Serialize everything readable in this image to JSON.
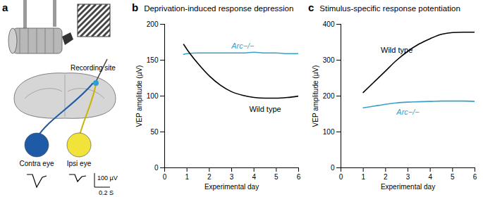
{
  "diagram": {
    "panel": "a",
    "recording_site": "Recording site",
    "eyes": [
      {
        "label": "Contra eye",
        "color": "#1f5aa6"
      },
      {
        "label": "Ipsi eye",
        "color": "#f2e33a"
      }
    ],
    "scale_bar": {
      "amplitude": "100 µV",
      "time": "0.2 S"
    }
  },
  "chart_data": [
    {
      "type": "line",
      "panel": "b",
      "title": "Deprivation-induced response depression",
      "x_label": "Experimental day",
      "y_label": "VEP amplitude (µV)",
      "x": [
        0.85,
        1,
        1.5,
        2,
        2.5,
        3,
        3.5,
        4,
        4.5,
        5,
        5.5,
        6
      ],
      "series": [
        {
          "name": "Arc−/−",
          "color": "#3a9fc8",
          "values": [
            158,
            159,
            160,
            160,
            160,
            160,
            160,
            161,
            160,
            160,
            159,
            159
          ]
        },
        {
          "name": "Wild type",
          "color": "#000000",
          "values": [
            172,
            165,
            145,
            128,
            115,
            106,
            101,
            98,
            97,
            97,
            98,
            100
          ]
        }
      ],
      "xlim": [
        0,
        6
      ],
      "xticks": [
        0,
        1,
        2,
        3,
        4,
        5,
        6
      ],
      "ylim": [
        0,
        200
      ],
      "yticks": [
        0,
        50,
        100,
        150,
        200
      ],
      "grid": false
    },
    {
      "type": "line",
      "panel": "c",
      "title": "Stimulus-specific response potentiation",
      "x_label": "Experimental day",
      "y_label": "VEP amplitude (µV)",
      "x": [
        1,
        1.5,
        2,
        2.5,
        3,
        3.5,
        4,
        4.5,
        5,
        5.5,
        6
      ],
      "series": [
        {
          "name": "Wild type",
          "color": "#000000",
          "values": [
            210,
            240,
            270,
            300,
            325,
            345,
            360,
            372,
            377,
            378,
            378
          ]
        },
        {
          "name": "Arc−/−",
          "color": "#3a9fc8",
          "values": [
            167,
            172,
            177,
            181,
            183,
            184,
            185,
            186,
            186,
            186,
            185
          ]
        }
      ],
      "xlim": [
        0,
        6
      ],
      "xticks": [
        0,
        1,
        2,
        3,
        4,
        5,
        6
      ],
      "ylim": [
        0,
        400
      ],
      "yticks": [
        0,
        100,
        200,
        300,
        400
      ],
      "grid": false
    }
  ]
}
